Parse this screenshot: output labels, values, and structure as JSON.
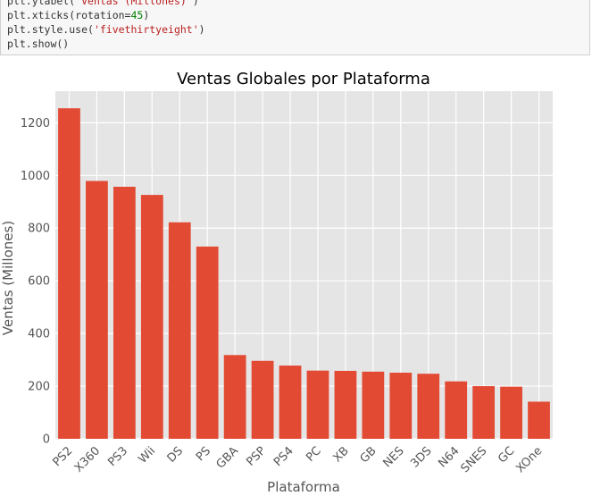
{
  "code_cell": {
    "lines": [
      [
        {
          "t": "plt.ylabel(",
          "c": ""
        },
        {
          "t": "'Ventas (Millones)'",
          "c": "str"
        },
        {
          "t": ")",
          "c": ""
        }
      ],
      [
        {
          "t": "plt.xticks(rotation=",
          "c": ""
        },
        {
          "t": "45",
          "c": "num"
        },
        {
          "t": ")",
          "c": ""
        }
      ],
      [
        {
          "t": "plt.style.use(",
          "c": ""
        },
        {
          "t": "'fivethirtyeight'",
          "c": "str"
        },
        {
          "t": ")",
          "c": ""
        }
      ],
      [
        {
          "t": "plt.show()",
          "c": ""
        }
      ]
    ]
  },
  "chart_data": {
    "type": "bar",
    "title": "Ventas Globales por Plataforma",
    "xlabel": "Plataforma",
    "ylabel": "Ventas (Millones)",
    "categories": [
      "PS2",
      "X360",
      "PS3",
      "Wii",
      "DS",
      "PS",
      "GBA",
      "PSP",
      "PS4",
      "PC",
      "XB",
      "GB",
      "NES",
      "3DS",
      "N64",
      "SNES",
      "GC",
      "XOne"
    ],
    "values": [
      1255,
      979,
      957,
      926,
      822,
      730,
      318,
      296,
      278,
      259,
      258,
      255,
      251,
      247,
      218,
      200,
      198,
      141
    ],
    "ylim": [
      0,
      1320
    ],
    "yticks": [
      0,
      200,
      400,
      600,
      800,
      1000,
      1200
    ],
    "xtick_rotation": 45,
    "grid": true,
    "style": "fivethirtyeight",
    "bar_color": "#e24a33",
    "axes_background": "#e5e5e5",
    "grid_color": "#ffffff"
  }
}
